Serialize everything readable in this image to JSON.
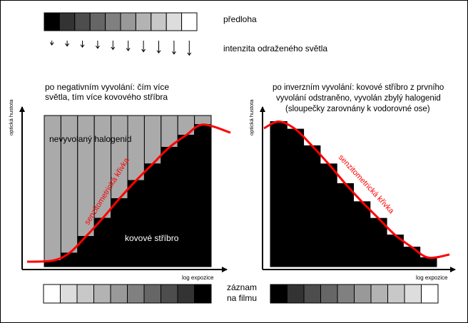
{
  "top_strip": {
    "label": "předloha",
    "arrows_label": "intenzita odraženého světla",
    "shades": [
      "#000000",
      "#333333",
      "#4d4d4d",
      "#666666",
      "#808080",
      "#999999",
      "#b3b3b3",
      "#c8c8c8",
      "#dddddd",
      "#ffffff"
    ]
  },
  "left_panel": {
    "title_line1": "po negativním vyvolání: čím více",
    "title_line2": "světla, tím více kovového stříbra",
    "y_axis_label": "optická hustota",
    "x_axis_label": "log expozice",
    "upper_region_label": "nevyvolaný halogenid",
    "lower_region_label": "kovové stříbro",
    "curve_label": "senzitometrická křivka",
    "bar_fractions": [
      0.04,
      0.09,
      0.2,
      0.32,
      0.45,
      0.57,
      0.68,
      0.79,
      0.87,
      0.94
    ],
    "bottom_strip_shades": [
      "#ffffff",
      "#dddddd",
      "#c8c8c8",
      "#b3b3b3",
      "#999999",
      "#808080",
      "#666666",
      "#4d4d4d",
      "#333333",
      "#000000"
    ]
  },
  "right_panel": {
    "title_line1": "po inverzním vyvolání: kovové stříbro z prvního",
    "title_line2": "vyvolání odstraněno, vyvolán zbylý halogenid",
    "title_line3": "(sloupečky zarovnány k vodorovné ose)",
    "y_axis_label": "optická hustota",
    "x_axis_label": "log expozice",
    "curve_label": "senzitometrická křivka",
    "bar_fractions": [
      0.96,
      0.91,
      0.8,
      0.68,
      0.55,
      0.43,
      0.32,
      0.21,
      0.13,
      0.06
    ],
    "bottom_strip_shades": [
      "#000000",
      "#333333",
      "#4d4d4d",
      "#666666",
      "#808080",
      "#999999",
      "#b3b3b3",
      "#c8c8c8",
      "#dddddd",
      "#ffffff"
    ]
  },
  "film_record_label_line1": "záznam",
  "film_record_label_line2": "na filmu",
  "colors": {
    "silver": "#000000",
    "halide": "#aaaaaa",
    "curve": "#ff0000"
  }
}
